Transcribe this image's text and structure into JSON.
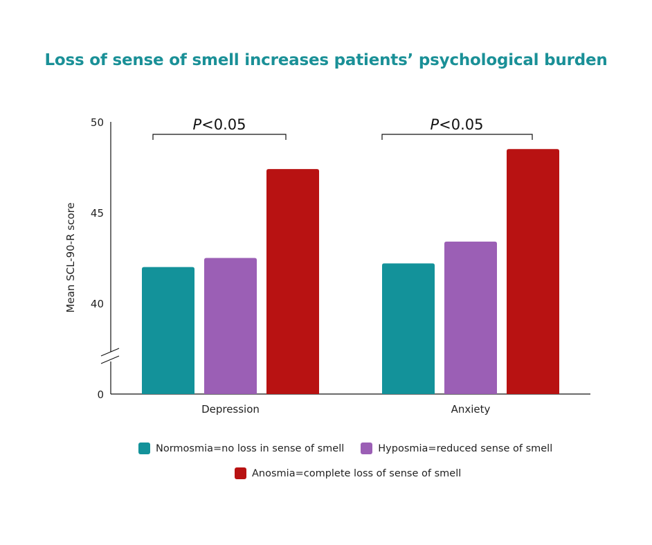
{
  "chart_data": {
    "type": "bar",
    "title": "Loss of sense of smell increases patients’ psychological burden",
    "ylabel": "Mean SCL-90-R score",
    "xlabel": "",
    "categories": [
      "Depression",
      "Anxiety"
    ],
    "series": [
      {
        "name": "Normosmia=no loss in sense of smell",
        "color": "#13929a",
        "values": [
          42.0,
          42.2
        ]
      },
      {
        "name": "Hyposmia=reduced sense of smell",
        "color": "#9b5fb5",
        "values": [
          42.5,
          43.4
        ]
      },
      {
        "name": "Anosmia=complete loss of sense of smell",
        "color": "#b81212",
        "values": [
          47.4,
          48.5
        ]
      }
    ],
    "ylim": [
      0,
      50
    ],
    "axis_break": true,
    "ytick_labels": [
      "0",
      "40",
      "45",
      "50"
    ],
    "grid": false,
    "legend_position": "bottom",
    "annotations": [
      {
        "category": "Depression",
        "text": "P<0.05",
        "italic_part": "P",
        "rest": "<0.05"
      },
      {
        "category": "Anxiety",
        "text": "P<0.05",
        "italic_part": "P",
        "rest": "<0.05"
      }
    ]
  }
}
